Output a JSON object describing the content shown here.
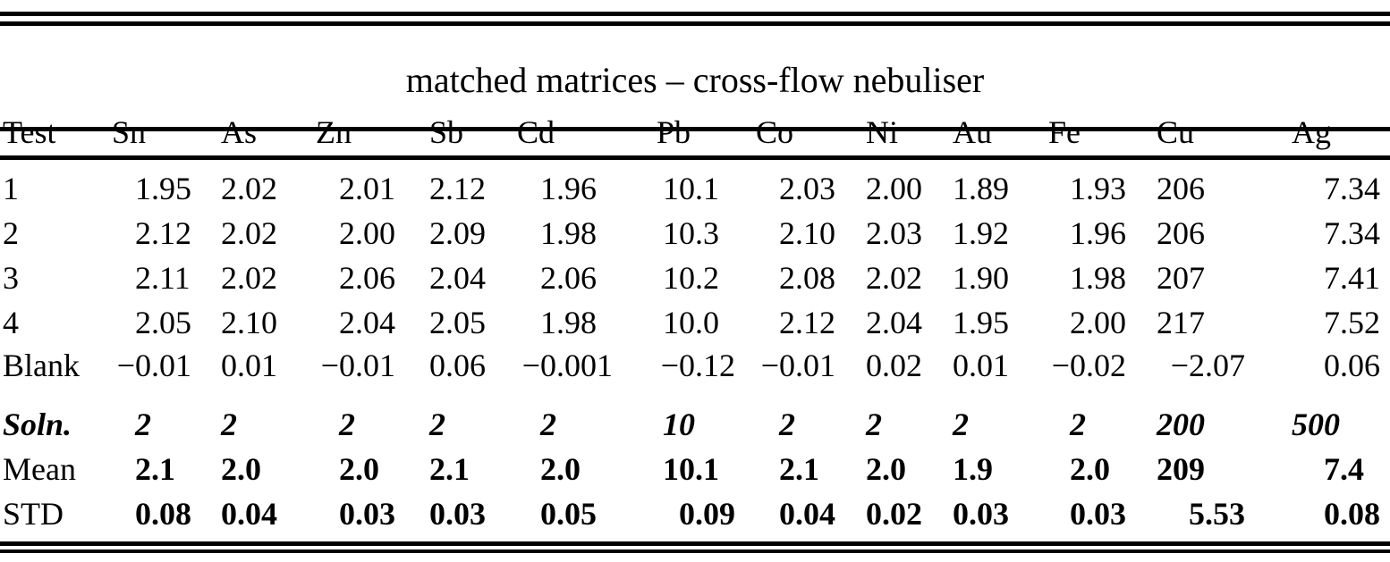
{
  "table": {
    "title": "matched matrices – cross-flow nebuliser",
    "columns": [
      "Test",
      "Sn",
      "As",
      "Zn",
      "Sb",
      "Cd",
      "Pb",
      "Co",
      "Ni",
      "Au",
      "Fe",
      "Cu",
      "Ag"
    ],
    "rows": [
      {
        "label": "1",
        "style": "regular",
        "values": [
          "1.95",
          "2.02",
          "2.01",
          "2.12",
          "1.96",
          "10.1",
          "2.03",
          "2.00",
          "1.89",
          "1.93",
          "206",
          "7.34"
        ]
      },
      {
        "label": "2",
        "style": "regular",
        "values": [
          "2.12",
          "2.02",
          "2.00",
          "2.09",
          "1.98",
          "10.3",
          "2.10",
          "2.03",
          "1.92",
          "1.96",
          "206",
          "7.34"
        ]
      },
      {
        "label": "3",
        "style": "regular",
        "values": [
          "2.11",
          "2.02",
          "2.06",
          "2.04",
          "2.06",
          "10.2",
          "2.08",
          "2.02",
          "1.90",
          "1.98",
          "207",
          "7.41"
        ]
      },
      {
        "label": "4",
        "style": "regular",
        "values": [
          "2.05",
          "2.10",
          "2.04",
          "2.05",
          "1.98",
          "10.0",
          "2.12",
          "2.04",
          "1.95",
          "2.00",
          "217",
          "7.52"
        ]
      },
      {
        "label": "Blank",
        "style": "regular",
        "values": [
          "−0.01",
          "0.01",
          "−0.01",
          "0.06",
          "−0.001",
          "−0.12",
          "−0.01",
          "0.02",
          "0.01",
          "−0.02",
          "−2.07",
          "0.06"
        ]
      },
      {
        "label": "Soln.",
        "style": "soln",
        "values": [
          "2",
          "2",
          "2",
          "2",
          "2",
          "10",
          "2",
          "2",
          "2",
          "2",
          "200",
          "500"
        ]
      },
      {
        "label": "Mean",
        "style": "bold-values",
        "values": [
          "2.1",
          "2.0",
          "2.0",
          "2.1",
          "2.0",
          "10.1",
          "2.1",
          "2.0",
          "1.9",
          "2.0",
          "209",
          "7.4"
        ]
      },
      {
        "label": "STD",
        "style": "bold-values",
        "values": [
          "0.08",
          "0.04",
          "0.03",
          "0.03",
          "0.05",
          "0.09",
          "0.04",
          "0.02",
          "0.03",
          "0.03",
          "5.53",
          "0.08"
        ]
      }
    ]
  }
}
